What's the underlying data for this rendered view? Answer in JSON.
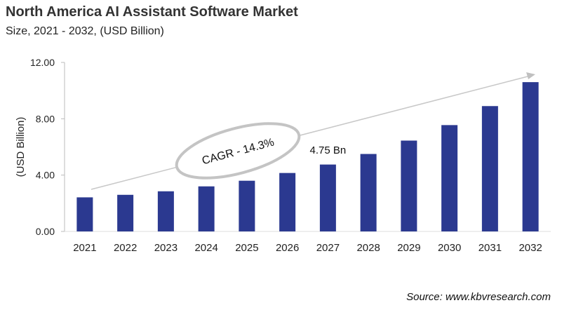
{
  "chart_data": {
    "type": "bar",
    "title": "North America AI Assistant Software Market",
    "subtitle": "Size, 2021 - 2032, (USD Billion)",
    "ylabel": "(USD Billion)",
    "xlabel": "",
    "categories": [
      "2021",
      "2022",
      "2023",
      "2024",
      "2025",
      "2026",
      "2027",
      "2028",
      "2029",
      "2030",
      "2031",
      "2032"
    ],
    "values": [
      2.42,
      2.6,
      2.85,
      3.2,
      3.6,
      4.15,
      4.75,
      5.5,
      6.45,
      7.55,
      8.9,
      10.6
    ],
    "ylim": [
      0,
      12
    ],
    "yticks": [
      "0.00",
      "4.00",
      "8.00",
      "12.00"
    ],
    "grid": false,
    "bar_color": "#2b3990",
    "annotations": {
      "cagr": "CAGR - 14.3%",
      "data_label": "4.75 Bn",
      "data_label_category": "2027"
    },
    "source": "Source: www.kbvresearch.com"
  }
}
